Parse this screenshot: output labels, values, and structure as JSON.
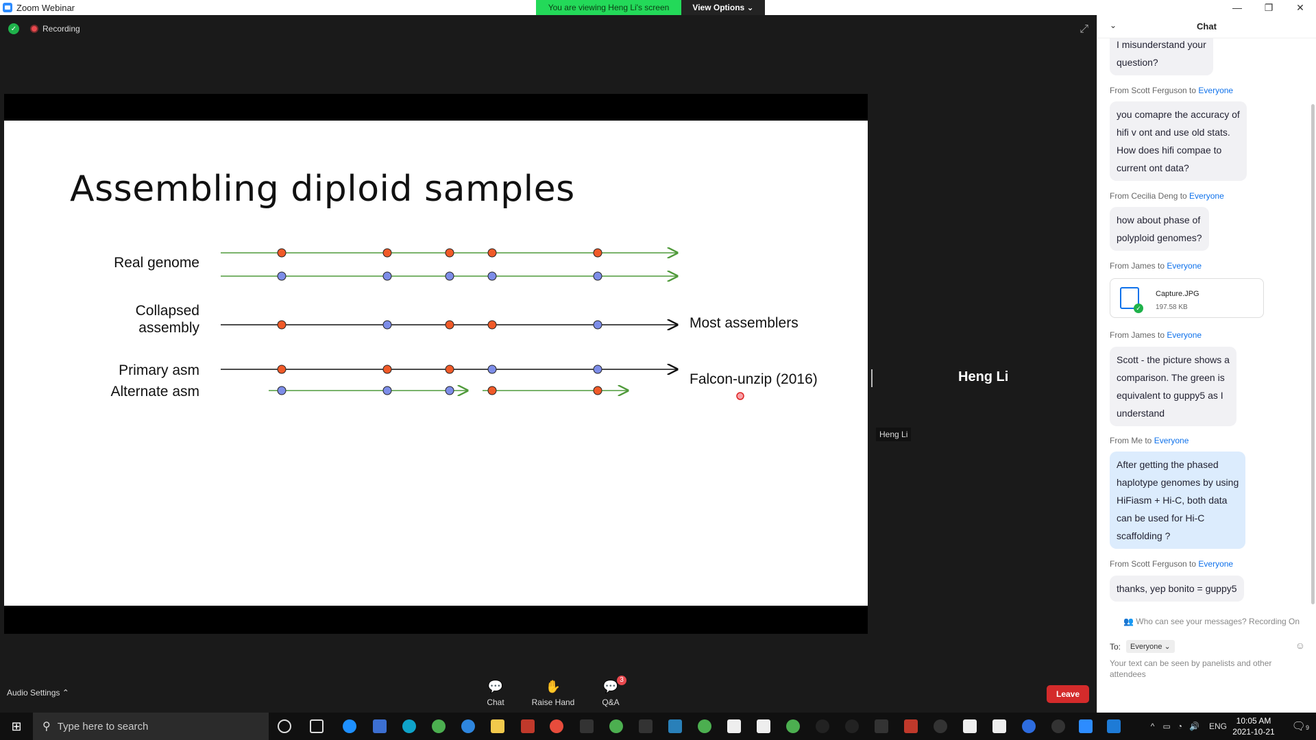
{
  "window": {
    "title": "Zoom Webinar",
    "viewing_banner": "You are viewing Heng Li's screen",
    "view_options": "View Options ⌄",
    "controls": [
      "—",
      "❐",
      "✕"
    ]
  },
  "topbar": {
    "recording_label": "Recording"
  },
  "slide": {
    "title": "Assembling diploid samples",
    "rows": [
      {
        "label": "Real genome"
      },
      {
        "label_line1": "Collapsed",
        "label_line2": "assembly",
        "right_label": "Most assemblers"
      },
      {
        "label": "Primary asm"
      },
      {
        "label": "Alternate asm",
        "right_label": "Falcon-unzip (2016)"
      }
    ],
    "colors": {
      "orange": "#f05a28",
      "blue": "#7d8de8",
      "green": "#4f9a3a"
    }
  },
  "speaker": {
    "name": "Heng Li",
    "tag": "Heng Li"
  },
  "toolbar": {
    "audio_settings": "Audio Settings ⌃",
    "chat": "Chat",
    "raise_hand": "Raise Hand",
    "qa": "Q&A",
    "qa_badge": "3",
    "leave": "Leave"
  },
  "chat": {
    "title": "Chat",
    "prev_bubble": [
      "I misunderstand your",
      "question?"
    ],
    "messages": [
      {
        "from": "From Scott Ferguson to ",
        "to": "Everyone",
        "lines": [
          "you comapre the accuracy of",
          "hifi v ont and use old stats.",
          "How does hifi compae to",
          "current ont data?"
        ]
      },
      {
        "from": "From Cecilia Deng to ",
        "to": "Everyone",
        "lines": [
          "how about phase of",
          "polyploid genomes?"
        ]
      },
      {
        "from": "From James to ",
        "to": "Everyone",
        "file": {
          "name": "Capture.JPG",
          "size": "197.58 KB"
        }
      },
      {
        "from": "From James to ",
        "to": "Everyone",
        "lines": [
          "Scott - the picture shows a",
          "comparison. The green is",
          "equivalent to guppy5 as I",
          "understand"
        ]
      },
      {
        "from": "From Me to ",
        "to": "Everyone",
        "lines": [
          "After getting the phased",
          "haplotype genomes by using",
          "HiFiasm + Hi-C, both data",
          "can be used for Hi-C",
          "scaffolding ?"
        ]
      },
      {
        "from": "From Scott Ferguson to ",
        "to": "Everyone",
        "lines": [
          "thanks, yep bonito = guppy5"
        ]
      }
    ],
    "who_can_see": "Who can see your messages? Recording On",
    "to_label": "To:",
    "to_value": "Everyone ⌄",
    "compose_placeholder": "Your text can be seen by panelists and other attendees"
  },
  "taskbar": {
    "search_placeholder": "Type here to search",
    "lang": "ENG",
    "time": "10:05 AM",
    "date": "2021-10-21",
    "notif_count": "9"
  }
}
